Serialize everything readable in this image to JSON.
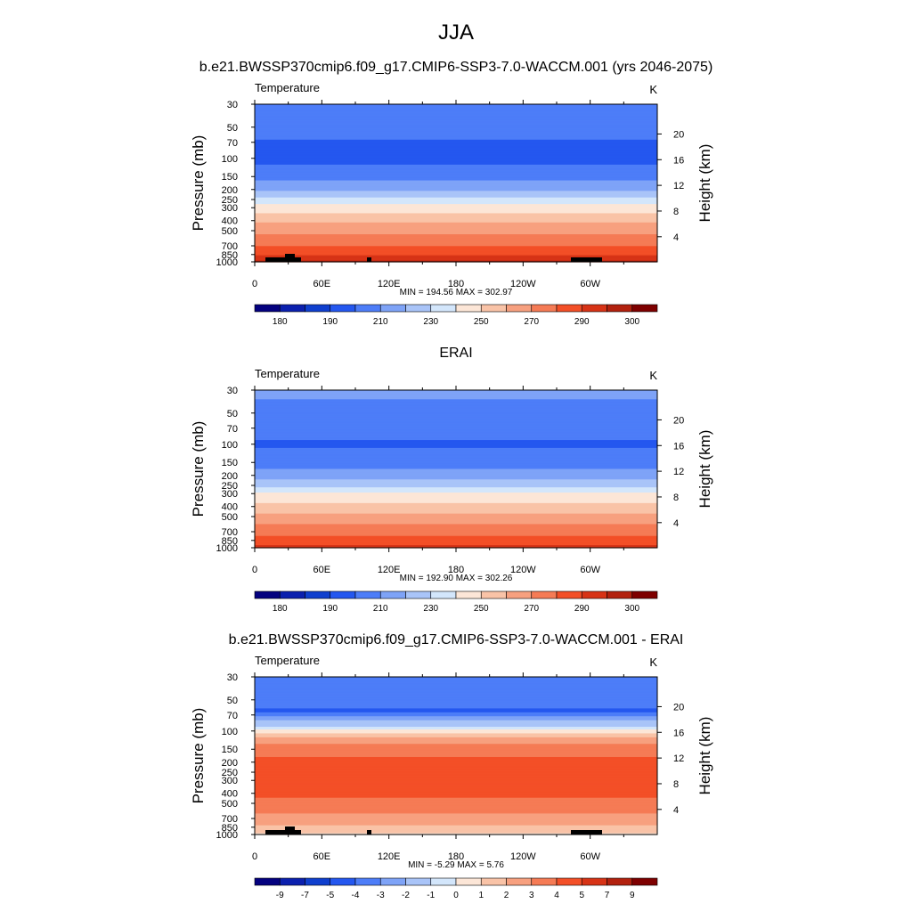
{
  "figure": {
    "title": "JJA",
    "panel_titles": [
      "b.e21.BWSSP370cmip6.f09_g17.CMIP6-SSP3-7.0-WACCM.001 (yrs 2046-2075)",
      "ERAI",
      "b.e21.BWSSP370cmip6.f09_g17.CMIP6-SSP3-7.0-WACCM.001 - ERAI"
    ]
  },
  "colors": {
    "abs_palette": [
      "#04017f",
      "#0b20ae",
      "#0f3fce",
      "#2457ef",
      "#4d7df8",
      "#7ea3f7",
      "#a9c4f8",
      "#d3e6fb",
      "#fce6d7",
      "#f9c3a7",
      "#f7a07f",
      "#f57b55",
      "#f34f27",
      "#d73316",
      "#b2210e",
      "#7e0000"
    ],
    "diff_palette": [
      "#04017f",
      "#0b20ae",
      "#0f3fce",
      "#2457ef",
      "#4d7df8",
      "#7ea3f7",
      "#a9c4f8",
      "#d3e6fb",
      "#fce6d7",
      "#f9c3a7",
      "#f7a07f",
      "#f57b55",
      "#f34f27",
      "#d73316",
      "#b2210e",
      "#7e0000"
    ],
    "topography": "#000000"
  },
  "chart_data": [
    {
      "type": "heatmap",
      "title": "b.e21.BWSSP370cmip6.f09_g17.CMIP6-SSP3-7.0-WACCM.001 (yrs 2046-2075)",
      "left_string": "Temperature",
      "right_string": "K",
      "xlabel": "",
      "ylabel": "Pressure (mb)",
      "ylabel_right": "Height (km)",
      "x_ticks": [
        "0",
        "60E",
        "120E",
        "180",
        "120W",
        "60W"
      ],
      "y_ticks": [
        "30",
        "50",
        "70",
        "100",
        "150",
        "200",
        "250",
        "300",
        "400",
        "500",
        "700",
        "850",
        "1000"
      ],
      "y_right_ticks": [
        "20",
        "16",
        "12",
        "8",
        "4"
      ],
      "y_scale": "log",
      "stats": "MIN = 194.56  MAX = 302.97",
      "colorbar_labels": [
        "180",
        "190",
        "210",
        "230",
        "250",
        "270",
        "290",
        "300"
      ],
      "colorbar_levels": [
        175,
        180,
        185,
        190,
        200,
        210,
        220,
        230,
        240,
        250,
        260,
        270,
        280,
        290,
        295,
        300
      ],
      "palette": "abs_palette",
      "profile": [
        {
          "p": 30,
          "v": 210
        },
        {
          "p": 50,
          "v": 204
        },
        {
          "p": 70,
          "v": 199
        },
        {
          "p": 100,
          "v": 197
        },
        {
          "p": 150,
          "v": 206
        },
        {
          "p": 200,
          "v": 218
        },
        {
          "p": 250,
          "v": 232
        },
        {
          "p": 300,
          "v": 245
        },
        {
          "p": 400,
          "v": 258
        },
        {
          "p": 500,
          "v": 267
        },
        {
          "p": 700,
          "v": 280
        },
        {
          "p": 850,
          "v": 289
        },
        {
          "p": 1000,
          "v": 296
        }
      ]
    },
    {
      "type": "heatmap",
      "title": "ERAI",
      "left_string": "Temperature",
      "right_string": "K",
      "xlabel": "",
      "ylabel": "Pressure (mb)",
      "ylabel_right": "Height (km)",
      "x_ticks": [
        "0",
        "60E",
        "120E",
        "180",
        "120W",
        "60W"
      ],
      "y_ticks": [
        "30",
        "50",
        "70",
        "100",
        "150",
        "200",
        "250",
        "300",
        "400",
        "500",
        "700",
        "850",
        "1000"
      ],
      "y_right_ticks": [
        "20",
        "16",
        "12",
        "8",
        "4"
      ],
      "y_scale": "log",
      "stats": "MIN = 192.90  MAX = 302.26",
      "colorbar_labels": [
        "180",
        "190",
        "210",
        "230",
        "250",
        "270",
        "290",
        "300"
      ],
      "colorbar_levels": [
        175,
        180,
        185,
        190,
        200,
        210,
        220,
        230,
        240,
        250,
        260,
        270,
        280,
        290,
        295,
        300
      ],
      "palette": "abs_palette",
      "profile": [
        {
          "p": 30,
          "v": 212
        },
        {
          "p": 50,
          "v": 207
        },
        {
          "p": 70,
          "v": 203
        },
        {
          "p": 100,
          "v": 199
        },
        {
          "p": 150,
          "v": 205
        },
        {
          "p": 200,
          "v": 215
        },
        {
          "p": 250,
          "v": 228
        },
        {
          "p": 300,
          "v": 241
        },
        {
          "p": 400,
          "v": 254
        },
        {
          "p": 500,
          "v": 263
        },
        {
          "p": 700,
          "v": 276
        },
        {
          "p": 850,
          "v": 285
        },
        {
          "p": 1000,
          "v": 292
        }
      ]
    },
    {
      "type": "heatmap",
      "title": "b.e21.BWSSP370cmip6.f09_g17.CMIP6-SSP3-7.0-WACCM.001 - ERAI",
      "left_string": "Temperature",
      "right_string": "K",
      "xlabel": "",
      "ylabel": "Pressure (mb)",
      "ylabel_right": "Height (km)",
      "x_ticks": [
        "0",
        "60E",
        "120E",
        "180",
        "120W",
        "60W"
      ],
      "y_ticks": [
        "30",
        "50",
        "70",
        "100",
        "150",
        "200",
        "250",
        "300",
        "400",
        "500",
        "700",
        "850",
        "1000"
      ],
      "y_right_ticks": [
        "20",
        "16",
        "12",
        "8",
        "4"
      ],
      "y_scale": "log",
      "stats": "MIN =  -5.29  MAX =   5.76",
      "colorbar_labels": [
        "-9",
        "-7",
        "-5",
        "-4",
        "-3",
        "-2",
        "-1",
        "0",
        "1",
        "2",
        "3",
        "4",
        "5",
        "7",
        "9"
      ],
      "colorbar_levels": [
        -11,
        -9,
        -7,
        -5,
        -4,
        -3,
        -2,
        -1,
        0,
        1,
        2,
        3,
        4,
        5,
        7,
        9
      ],
      "palette": "diff_palette",
      "profile": [
        {
          "p": 30,
          "v": -3.5
        },
        {
          "p": 50,
          "v": -3.5
        },
        {
          "p": 65,
          "v": -4.2
        },
        {
          "p": 75,
          "v": -2.5
        },
        {
          "p": 90,
          "v": -1.0
        },
        {
          "p": 100,
          "v": 0.5
        },
        {
          "p": 120,
          "v": 2.5
        },
        {
          "p": 150,
          "v": 3.5
        },
        {
          "p": 200,
          "v": 4.3
        },
        {
          "p": 300,
          "v": 4.4
        },
        {
          "p": 400,
          "v": 4.2
        },
        {
          "p": 500,
          "v": 3.8
        },
        {
          "p": 700,
          "v": 2.6
        },
        {
          "p": 850,
          "v": 1.8
        },
        {
          "p": 1000,
          "v": 0.8
        }
      ]
    }
  ]
}
